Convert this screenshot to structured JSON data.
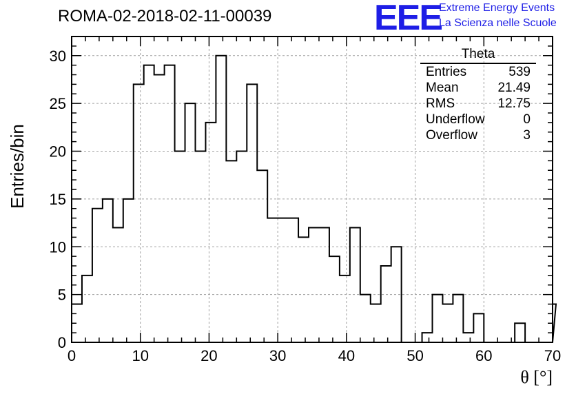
{
  "header": {
    "title": "ROMA-02-2018-02-11-00039",
    "logo_text": "EEE",
    "logo_line1": "Extreme Energy Events",
    "logo_line2": "La Scienza nelle Scuole"
  },
  "stats_box": {
    "title": "Theta",
    "rows": [
      {
        "label": "Entries",
        "value": "539"
      },
      {
        "label": "Mean",
        "value": "21.49"
      },
      {
        "label": "RMS",
        "value": "12.75"
      },
      {
        "label": "Underflow",
        "value": "0"
      },
      {
        "label": "Overflow",
        "value": "3"
      }
    ]
  },
  "colors": {
    "accent": "#1e1ee6",
    "line": "#000000",
    "grid": "#a0a0a0"
  },
  "chart_data": {
    "type": "bar",
    "histogram": true,
    "title": "ROMA-02-2018-02-11-00039",
    "xlabel": "θ [°]",
    "ylabel": "Entries/bin",
    "xlim": [
      0,
      70
    ],
    "ylim": [
      0,
      32
    ],
    "bin_width": 1.5,
    "x_ticks": [
      0,
      10,
      20,
      30,
      40,
      50,
      60,
      70
    ],
    "y_ticks": [
      0,
      5,
      10,
      15,
      20,
      25,
      30
    ],
    "x_tick_labels": [
      "0",
      "10",
      "20",
      "30",
      "40",
      "50",
      "60",
      "70"
    ],
    "y_tick_labels": [
      "0",
      "5",
      "10",
      "15",
      "20",
      "25",
      "30"
    ],
    "grid": true,
    "legend": "top-right stats box",
    "values": [
      4,
      7,
      14,
      15,
      12,
      15,
      27,
      29,
      28,
      29,
      20,
      25,
      20,
      23,
      30,
      19,
      20,
      27,
      18,
      13,
      13,
      13,
      11,
      12,
      12,
      9,
      7,
      12,
      5,
      4,
      8,
      10,
      0,
      0,
      1,
      5,
      4,
      5,
      1,
      3,
      0,
      0,
      0,
      2,
      0,
      0,
      0,
      4
    ]
  }
}
